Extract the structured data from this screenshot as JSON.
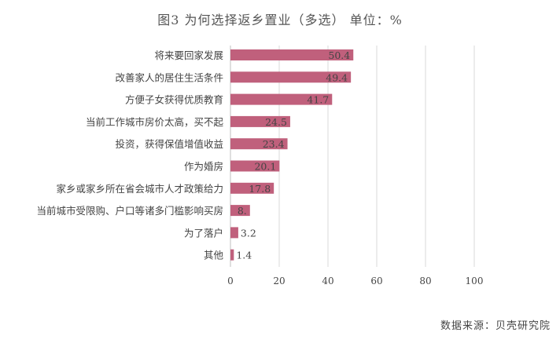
{
  "chart_data": {
    "type": "bar",
    "orientation": "horizontal",
    "title": "图3 为何选择返乡置业（多选） 单位：%",
    "categories": [
      "将来要回家发展",
      "改善家人的居住生活条件",
      "方便子女获得优质教育",
      "当前工作城市房价太高，买不起",
      "投资，获得保值增值收益",
      "作为婚房",
      "家乡或家乡所在省会城市人才政策给力",
      "当前城市受限购、户口等诸多门槛影响买房",
      "为了落户",
      "其他"
    ],
    "values": [
      50.4,
      49.4,
      41.7,
      24.5,
      23.4,
      20.1,
      17.8,
      8.0,
      3.2,
      1.4
    ],
    "value_labels": [
      "50.4",
      "49.4",
      "41.7",
      "24.5",
      "23.4",
      "20.1",
      "17.8",
      "8.",
      "3.2",
      "1.4"
    ],
    "xlim": [
      0,
      100
    ],
    "x_ticks": [
      0,
      20,
      40,
      60,
      80,
      100
    ],
    "xlabel": "",
    "ylabel": "",
    "grid": "vertical",
    "bar_color": "#c0607c",
    "label_color_inside": "#ffffff",
    "label_color_outside": "#444444"
  },
  "source": "数据来源：贝壳研究院"
}
